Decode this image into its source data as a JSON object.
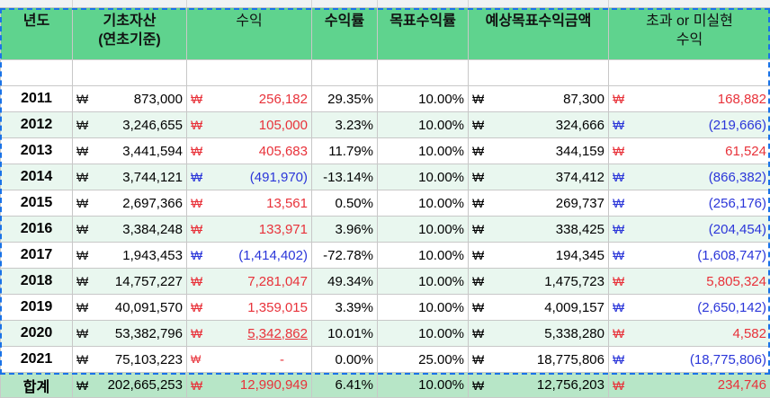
{
  "headers": {
    "year": "년도",
    "base_asset": "기초자산\n(연초기준)",
    "profit": "수익",
    "profit_rate": "수익률",
    "target_rate": "목표수익률",
    "expected_amount": "예상목표수익금액",
    "excess": "초과 or 미실현\n수익"
  },
  "currency_symbol": "₩",
  "rows": [
    {
      "year": "2011",
      "base": "873,000",
      "profit": "256,182",
      "profit_color": "red",
      "rate": "29.35%",
      "target": "10.00%",
      "expected": "87,300",
      "excess": "168,882",
      "excess_color": "red"
    },
    {
      "year": "2012",
      "base": "3,246,655",
      "profit": "105,000",
      "profit_color": "red",
      "rate": "3.23%",
      "target": "10.00%",
      "expected": "324,666",
      "excess": "(219,666)",
      "excess_color": "blue"
    },
    {
      "year": "2013",
      "base": "3,441,594",
      "profit": "405,683",
      "profit_color": "red",
      "rate": "11.79%",
      "target": "10.00%",
      "expected": "344,159",
      "excess": "61,524",
      "excess_color": "red"
    },
    {
      "year": "2014",
      "base": "3,744,121",
      "profit": "(491,970)",
      "profit_color": "blue",
      "rate": "-13.14%",
      "target": "10.00%",
      "expected": "374,412",
      "excess": "(866,382)",
      "excess_color": "blue"
    },
    {
      "year": "2015",
      "base": "2,697,366",
      "profit": "13,561",
      "profit_color": "red",
      "rate": "0.50%",
      "target": "10.00%",
      "expected": "269,737",
      "excess": "(256,176)",
      "excess_color": "blue"
    },
    {
      "year": "2016",
      "base": "3,384,248",
      "profit": "133,971",
      "profit_color": "red",
      "rate": "3.96%",
      "target": "10.00%",
      "expected": "338,425",
      "excess": "(204,454)",
      "excess_color": "blue"
    },
    {
      "year": "2017",
      "base": "1,943,453",
      "profit": "(1,414,402)",
      "profit_color": "blue",
      "rate": "-72.78%",
      "target": "10.00%",
      "expected": "194,345",
      "excess": "(1,608,747)",
      "excess_color": "blue"
    },
    {
      "year": "2018",
      "base": "14,757,227",
      "profit": "7,281,047",
      "profit_color": "red",
      "rate": "49.34%",
      "target": "10.00%",
      "expected": "1,475,723",
      "excess": "5,805,324",
      "excess_color": "red"
    },
    {
      "year": "2019",
      "base": "40,091,570",
      "profit": "1,359,015",
      "profit_color": "red",
      "rate": "3.39%",
      "target": "10.00%",
      "expected": "4,009,157",
      "excess": "(2,650,142)",
      "excess_color": "blue"
    },
    {
      "year": "2020",
      "base": "53,382,796",
      "profit": "5,342,862",
      "profit_color": "red",
      "profit_underline": true,
      "rate": "10.01%",
      "target": "10.00%",
      "expected": "5,338,280",
      "excess": "4,582",
      "excess_color": "red"
    },
    {
      "year": "2021",
      "base": "75,103,223",
      "profit": "-",
      "profit_color": "red",
      "rate": "0.00%",
      "target": "25.00%",
      "expected": "18,775,806",
      "excess": "(18,775,806)",
      "excess_color": "blue"
    }
  ],
  "total": {
    "label": "합계",
    "base": "202,665,253",
    "profit": "12,990,949",
    "rate": "6.41%",
    "target": "10.00%",
    "expected": "12,756,203",
    "excess": "234,746"
  },
  "colors": {
    "header_bg": "#5fd38e",
    "alt_row_bg": "#e9f7ef",
    "total_bg": "#b7e6c7",
    "positive": "#e8323a",
    "negative": "#2b36d9"
  }
}
